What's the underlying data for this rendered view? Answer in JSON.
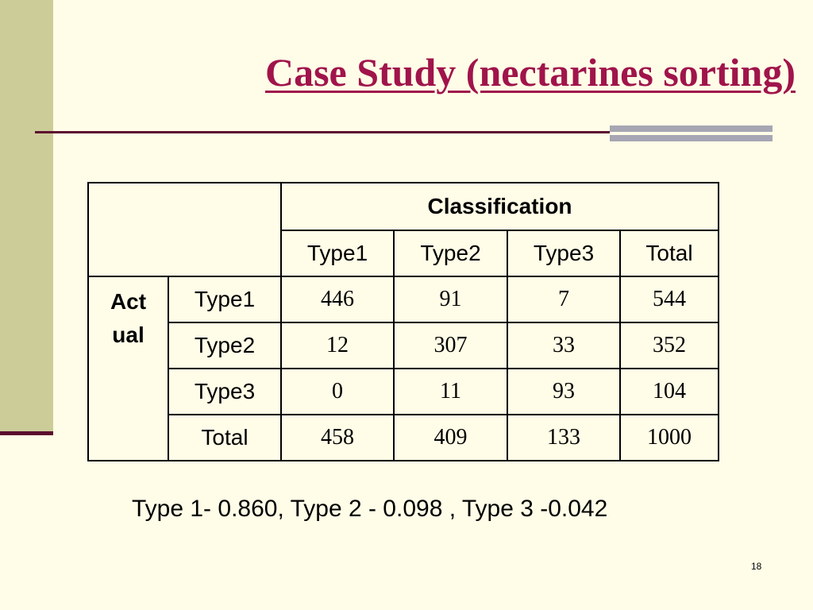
{
  "slide": {
    "title": "Case Study (nectarines sorting)",
    "summary": "Type 1- 0.860, Type 2 - 0.098 , Type 3 -0.042",
    "page_number": "18",
    "colors": {
      "background": "#FFFDE7",
      "title": "#A0144B",
      "left_band": "#CCCC99",
      "rule": "#5C0E2E",
      "accent_bars": "#A6A6B4"
    }
  },
  "table": {
    "classification_label": "Classification",
    "actual_label_line1": "Act",
    "actual_label_line2": "ual",
    "columns": [
      "Type1",
      "Type2",
      "Type3",
      "Total"
    ],
    "rows": [
      {
        "label": "Type1",
        "values": [
          "446",
          "91",
          "7",
          "544"
        ]
      },
      {
        "label": "Type2",
        "values": [
          "12",
          "307",
          "33",
          "352"
        ]
      },
      {
        "label": "Type3",
        "values": [
          "0",
          "11",
          "93",
          "104"
        ]
      },
      {
        "label": "Total",
        "values": [
          "458",
          "409",
          "133",
          "1000"
        ]
      }
    ]
  }
}
